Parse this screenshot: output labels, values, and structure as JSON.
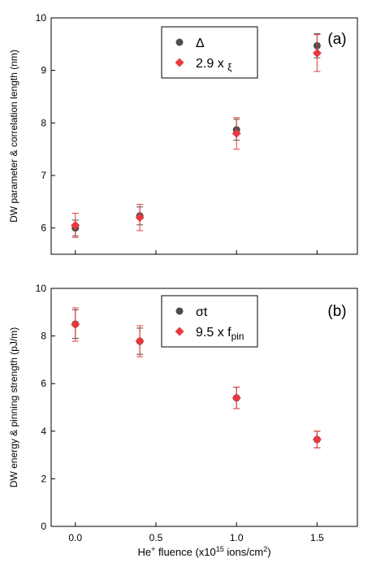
{
  "chart_data": [
    {
      "type": "scatter",
      "panel_label": "(a)",
      "title": "",
      "xlabel": "",
      "ylabel": "DW parameter & correlation length  (nm)",
      "xlim": [
        -0.15,
        1.75
      ],
      "ylim": [
        5.5,
        10
      ],
      "x_ticks": [
        0.0,
        0.5,
        1.0,
        1.5
      ],
      "x_tick_labels": [
        "",
        "",
        "",
        ""
      ],
      "y_ticks": [
        6,
        7,
        8,
        9,
        10
      ],
      "y_tick_labels": [
        "6",
        "7",
        "8",
        "9",
        "10"
      ],
      "grid": false,
      "legend_position": "top-center",
      "series": [
        {
          "name": "Δ",
          "marker": "circle",
          "color": "#4d4d4d",
          "x": [
            0.0,
            0.4,
            1.0,
            1.5
          ],
          "y": [
            6.0,
            6.23,
            7.87,
            9.47
          ],
          "yerr": [
            0.15,
            0.17,
            0.2,
            0.23
          ]
        },
        {
          "name_parts": [
            "2.9 x ",
            "ξ"
          ],
          "marker": "diamond",
          "color": "#e8383d",
          "x": [
            0.0,
            0.4,
            1.0,
            1.5
          ],
          "y": [
            6.05,
            6.2,
            7.8,
            9.33
          ],
          "yerr": [
            0.23,
            0.25,
            0.3,
            0.35
          ]
        }
      ]
    },
    {
      "type": "scatter",
      "panel_label": "(b)",
      "title": "",
      "xlabel_parts": [
        "He",
        "+",
        " fluence (x10",
        "15",
        " ions/cm",
        "2",
        ")"
      ],
      "ylabel": "DW energy & pinning strength (pJ/m)",
      "xlim": [
        -0.15,
        1.75
      ],
      "ylim": [
        0,
        10
      ],
      "x_ticks": [
        0.0,
        0.5,
        1.0,
        1.5
      ],
      "x_tick_labels": [
        "0.0",
        "0.5",
        "1.0",
        "1.5"
      ],
      "y_ticks": [
        0,
        2,
        4,
        6,
        8,
        10
      ],
      "y_tick_labels": [
        "0",
        "2",
        "4",
        "6",
        "8",
        "10"
      ],
      "grid": false,
      "legend_position": "top-center",
      "series": [
        {
          "name": "σt",
          "marker": "circle",
          "color": "#4d4d4d",
          "x": [
            0.0,
            0.4,
            1.0,
            1.5
          ],
          "y": [
            8.5,
            7.78,
            5.4,
            3.65
          ],
          "yerr": [
            0.6,
            0.55,
            0.45,
            0.35
          ]
        },
        {
          "name_parts": [
            "9.5 x f",
            "pin"
          ],
          "marker": "diamond",
          "color": "#e8383d",
          "x": [
            0.0,
            0.4,
            1.0,
            1.5
          ],
          "y": [
            8.48,
            7.78,
            5.4,
            3.65
          ],
          "yerr": [
            0.7,
            0.65,
            0.45,
            0.35
          ]
        }
      ]
    }
  ]
}
